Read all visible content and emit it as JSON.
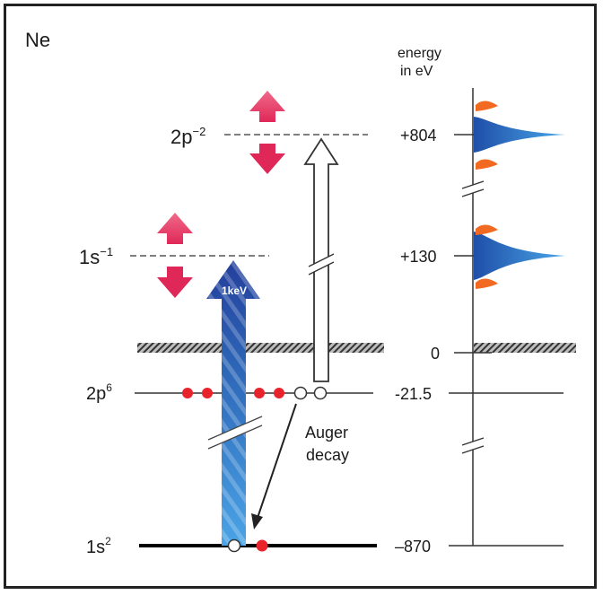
{
  "element": "Ne",
  "axis": {
    "title_line1": "energy",
    "title_line2": "in eV"
  },
  "levels": {
    "double_core_hole": {
      "base": "2p",
      "sup": "−2"
    },
    "core_hole": {
      "base": "1s",
      "sup": "−1"
    },
    "valence": {
      "base": "2p",
      "sup": "6"
    },
    "core": {
      "base": "1s",
      "sup": "2"
    }
  },
  "energies": {
    "e_804": "+804",
    "e_130": "+130",
    "e_0": "0",
    "e_m21": "-21.5",
    "e_m870": "–870"
  },
  "photon_label": "1keV",
  "auger": {
    "line1": "Auger",
    "line2": "decay"
  },
  "colors": {
    "photon_arrow": "#2a5cb0",
    "electron": "#e8232b",
    "pink_arrow": "#e8456f",
    "spectrum_blue": "#2a6fc9",
    "sideband": "#f26a21"
  }
}
